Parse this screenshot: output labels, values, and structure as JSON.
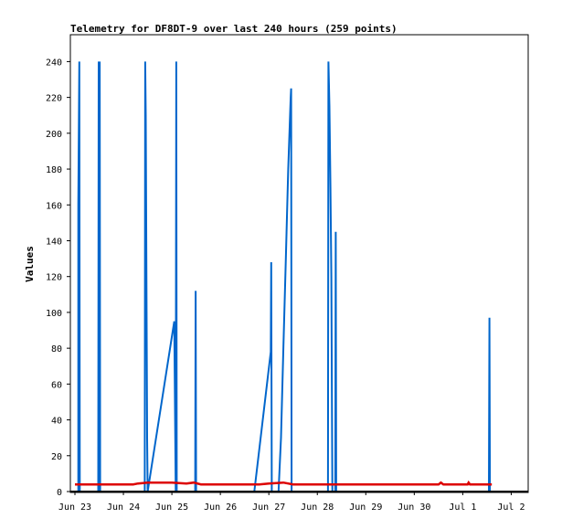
{
  "chart_data": {
    "type": "line",
    "title": "Telemetry for DF8DT-9 over last 240 hours (259 points)",
    "xlabel": "",
    "ylabel": "Values",
    "x_tick_labels": [
      "Jun 23",
      "Jun 24",
      "Jun 25",
      "Jun 26",
      "Jun 27",
      "Jun 28",
      "Jun 29",
      "Jun 30",
      "Jul 1",
      "Jul 2"
    ],
    "xlim": [
      0,
      9.35
    ],
    "ylim": [
      0,
      255
    ],
    "y_ticks": [
      0,
      20,
      40,
      60,
      80,
      100,
      120,
      140,
      160,
      180,
      200,
      220,
      240
    ],
    "grid": false,
    "legend": "none",
    "series": [
      {
        "color": "#0066cc",
        "points": [
          [
            0.07,
            0
          ],
          [
            0.07,
            160
          ],
          [
            0.09,
            240
          ],
          [
            0.1,
            0
          ],
          [
            0.48,
            0
          ],
          [
            0.49,
            240
          ],
          [
            0.5,
            0
          ],
          [
            0.51,
            240
          ],
          [
            0.52,
            0
          ],
          [
            1.44,
            0
          ],
          [
            1.45,
            240
          ],
          [
            1.46,
            210
          ],
          [
            1.47,
            150
          ],
          [
            1.48,
            90
          ],
          [
            1.49,
            30
          ],
          [
            1.5,
            0
          ],
          [
            2.05,
            95
          ],
          [
            2.08,
            0
          ],
          [
            2.09,
            240
          ],
          [
            2.1,
            0
          ],
          [
            2.48,
            0
          ],
          [
            2.49,
            112
          ],
          [
            2.5,
            0
          ],
          [
            3.7,
            0
          ],
          [
            4.04,
            78
          ],
          [
            4.05,
            128
          ],
          [
            4.06,
            0
          ],
          [
            4.2,
            0
          ],
          [
            4.25,
            30
          ],
          [
            4.3,
            80
          ],
          [
            4.35,
            130
          ],
          [
            4.4,
            180
          ],
          [
            4.45,
            220
          ],
          [
            4.46,
            225
          ],
          [
            4.47,
            0
          ],
          [
            5.22,
            0
          ],
          [
            5.23,
            240
          ],
          [
            5.25,
            215
          ],
          [
            5.27,
            170
          ],
          [
            5.29,
            120
          ],
          [
            5.31,
            0
          ],
          [
            5.37,
            0
          ],
          [
            5.38,
            145
          ],
          [
            5.39,
            0
          ],
          [
            8.54,
            0
          ],
          [
            8.55,
            97
          ],
          [
            8.56,
            0
          ]
        ]
      },
      {
        "color": "#dd0000",
        "points": [
          [
            0.0,
            4
          ],
          [
            1.2,
            4
          ],
          [
            1.3,
            4.5
          ],
          [
            1.5,
            5
          ],
          [
            2.0,
            5
          ],
          [
            2.3,
            4.5
          ],
          [
            2.45,
            5
          ],
          [
            2.6,
            4
          ],
          [
            3.8,
            4
          ],
          [
            4.0,
            4.5
          ],
          [
            4.3,
            5
          ],
          [
            4.5,
            4
          ],
          [
            7.5,
            4
          ],
          [
            7.55,
            5
          ],
          [
            7.6,
            4
          ],
          [
            8.1,
            4
          ],
          [
            8.12,
            5
          ],
          [
            8.15,
            4
          ],
          [
            8.6,
            4
          ]
        ]
      }
    ]
  }
}
